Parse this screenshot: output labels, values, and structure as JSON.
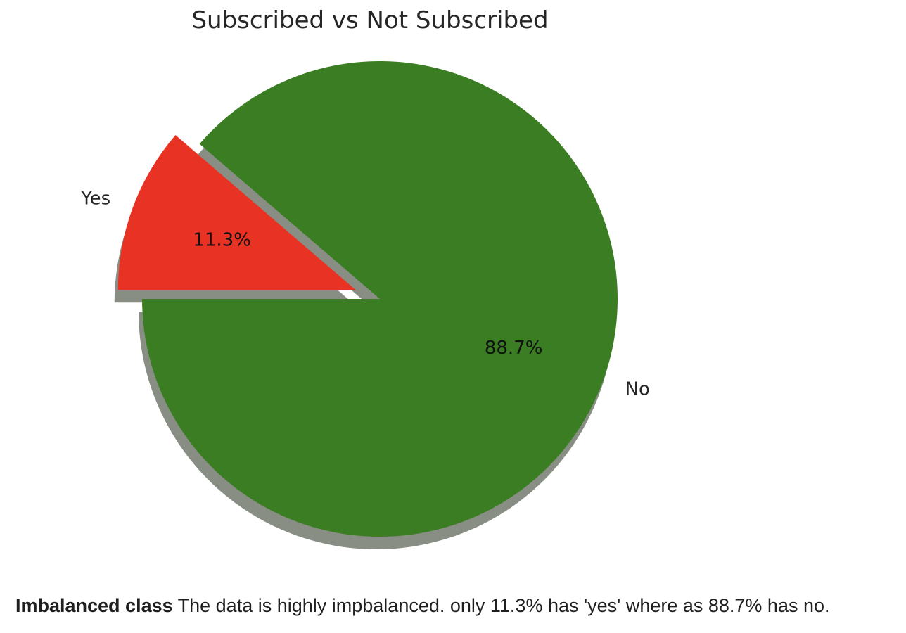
{
  "chart_data": {
    "type": "pie",
    "title": "Subscribed vs Not Subscribed",
    "slices": [
      {
        "label": "Yes",
        "value": 11.3,
        "pct_label": "11.3%",
        "color": "#e83324",
        "exploded": true
      },
      {
        "label": "No",
        "value": 88.7,
        "pct_label": "88.7%",
        "color": "#3a7d22",
        "exploded": false
      }
    ],
    "start_angle_deg": 180,
    "shadow": true,
    "shadow_color": "#888e84"
  },
  "caption": {
    "bold": "Imbalanced class",
    "text": " The data is highly impbalanced. only 11.3% has 'yes' where as 88.7% has no."
  }
}
